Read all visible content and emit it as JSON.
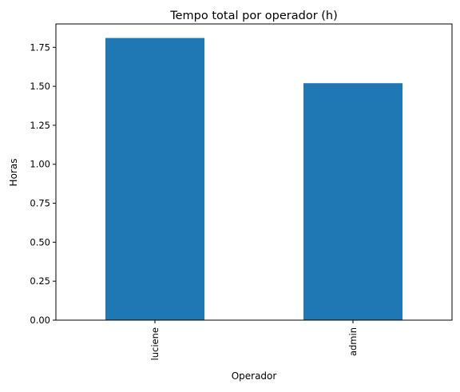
{
  "chart_data": {
    "type": "bar",
    "title": "Tempo total por operador (h)",
    "xlabel": "Operador",
    "ylabel": "Horas",
    "categories": [
      "luciene",
      "admin"
    ],
    "values": [
      1.81,
      1.52
    ],
    "ylim": [
      0,
      1.9
    ],
    "yticks": [
      "0.00",
      "0.25",
      "0.50",
      "0.75",
      "1.00",
      "1.25",
      "1.50",
      "1.75"
    ],
    "bar_color": "#1f77b4",
    "grid": false,
    "legend": false,
    "xtick_rotation": "vertical"
  }
}
